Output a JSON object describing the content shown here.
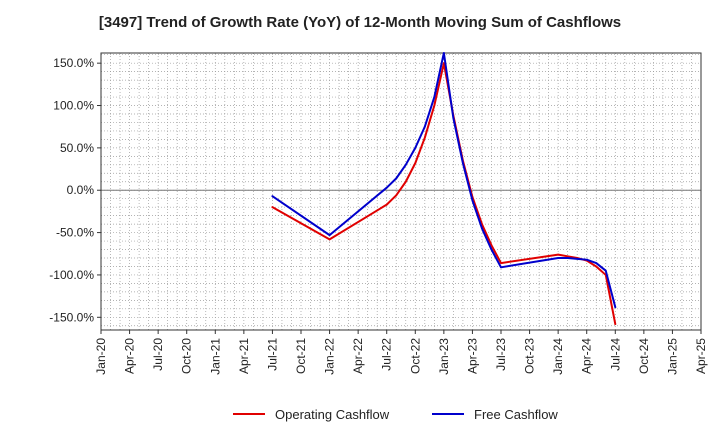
{
  "chart_data": {
    "type": "line",
    "title": "[3497]  Trend of Growth Rate (YoY) of 12-Month Moving Sum of Cashflows",
    "xlabel": "",
    "ylabel": "",
    "x_ticks": [
      "Jan-20",
      "Apr-20",
      "Jul-20",
      "Oct-20",
      "Jan-21",
      "Apr-21",
      "Jul-21",
      "Oct-21",
      "Jan-22",
      "Apr-22",
      "Jul-22",
      "Oct-22",
      "Jan-23",
      "Apr-23",
      "Jul-23",
      "Oct-23",
      "Jan-24",
      "Apr-24",
      "Jul-24",
      "Oct-24",
      "Jan-25",
      "Apr-25"
    ],
    "xlim": [
      "Jan-20",
      "Apr-25"
    ],
    "y_ticks": [
      "150.0%",
      "100.0%",
      "50.0%",
      "0.0%",
      "-50.0%",
      "-100.0%",
      "-150.0%"
    ],
    "y_tick_values": [
      150,
      100,
      50,
      0,
      -50,
      -100,
      -150
    ],
    "ylim": [
      -165,
      162
    ],
    "grid": true,
    "legend_position": "bottom",
    "series": [
      {
        "name": "Operating Cashflow",
        "color": "#e00000",
        "x": [
          "Jul-21",
          "Jan-22",
          "Jul-22",
          "Aug-22",
          "Sep-22",
          "Oct-22",
          "Nov-22",
          "Dec-22",
          "Jan-23",
          "Feb-23",
          "Mar-23",
          "Apr-23",
          "May-23",
          "Jun-23",
          "Jul-23",
          "Jan-24",
          "Feb-24",
          "Mar-24",
          "Apr-24",
          "May-24",
          "Jun-24",
          "Jul-24"
        ],
        "values": [
          -20,
          -58,
          -17,
          -6,
          10,
          32,
          62,
          100,
          150,
          88,
          35,
          -8,
          -40,
          -65,
          -86,
          -76,
          -78,
          -80,
          -83,
          -90,
          -100,
          -158
        ]
      },
      {
        "name": "Free Cashflow",
        "color": "#0000cc",
        "x": [
          "Jul-21",
          "Jan-22",
          "Jul-22",
          "Aug-22",
          "Sep-22",
          "Oct-22",
          "Nov-22",
          "Dec-22",
          "Jan-23",
          "Feb-23",
          "Mar-23",
          "Apr-23",
          "May-23",
          "Jun-23",
          "Jul-23",
          "Jan-24",
          "Feb-24",
          "Mar-24",
          "Apr-24",
          "May-24",
          "Jun-24",
          "Jul-24"
        ],
        "values": [
          -7,
          -53,
          3,
          14,
          30,
          50,
          75,
          110,
          162,
          85,
          32,
          -12,
          -45,
          -70,
          -91,
          -80,
          -80,
          -81,
          -82,
          -86,
          -95,
          -138
        ]
      }
    ]
  }
}
